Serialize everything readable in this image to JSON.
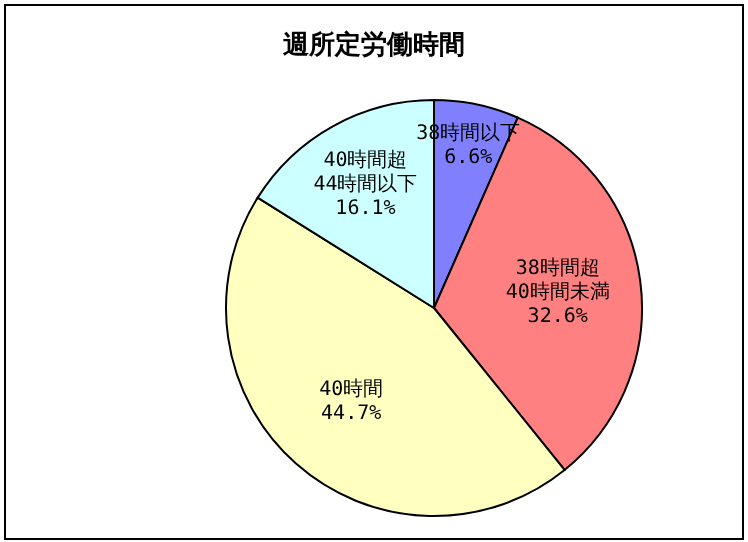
{
  "chart_data": {
    "type": "pie",
    "title": "週所定労働時間",
    "categories": [
      "38時間以下",
      "38時間超40時間未満",
      "40時間",
      "40時間超44時間以下"
    ],
    "values": [
      6.6,
      32.6,
      44.7,
      16.1
    ],
    "value_labels": [
      "6.6%",
      "32.6%",
      "44.7%",
      "16.1%"
    ],
    "colors": [
      "#8080ff",
      "#ff8080",
      "#ffffc0",
      "#ccffff"
    ],
    "legend": false
  }
}
